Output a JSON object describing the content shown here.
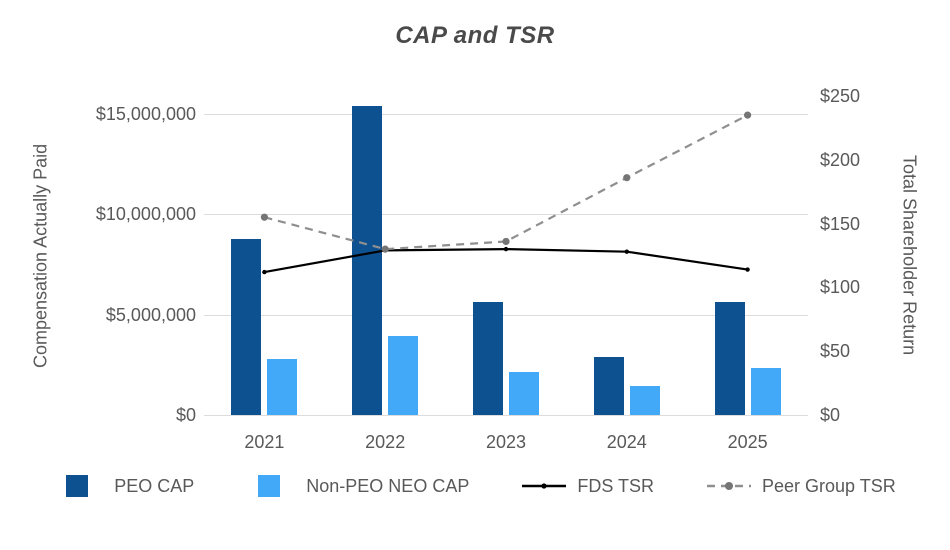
{
  "title": "CAP and TSR",
  "left_axis": {
    "title": "Compensation Actually Paid",
    "ticks": [
      {
        "label": "$15,000,000",
        "value": 15000000
      },
      {
        "label": "$10,000,000",
        "value": 10000000
      },
      {
        "label": "$5,000,000",
        "value": 5000000
      },
      {
        "label": "$0",
        "value": 0
      }
    ],
    "range": [
      0,
      15900000
    ],
    "gridline_values": [
      0,
      5000000,
      10000000,
      15000000
    ]
  },
  "right_axis": {
    "title": "Total Shareholder Return",
    "ticks": [
      {
        "label": "$250",
        "value": 250
      },
      {
        "label": "$200",
        "value": 200
      },
      {
        "label": "$150",
        "value": 150
      },
      {
        "label": "$100",
        "value": 100
      },
      {
        "label": "$50",
        "value": 50
      },
      {
        "label": "$0",
        "value": 0
      }
    ],
    "range": [
      0,
      250
    ]
  },
  "chart_data": {
    "type": "combo-bar-line",
    "title": "CAP and TSR",
    "categories": [
      "2021",
      "2022",
      "2023",
      "2024",
      "2025"
    ],
    "series": [
      {
        "name": "PEO CAP",
        "type": "bar",
        "axis": "left",
        "color": "#0e5190",
        "values": [
          8750000,
          15400000,
          5650000,
          2900000,
          5650000
        ]
      },
      {
        "name": "Non-PEO NEO CAP",
        "type": "bar",
        "axis": "left",
        "color": "#41a9f7",
        "values": [
          2800000,
          3950000,
          2150000,
          1450000,
          2350000
        ]
      },
      {
        "name": "FDS TSR",
        "type": "line",
        "axis": "right",
        "color": "#000000",
        "dash": "solid",
        "marker_color": "#000000",
        "values": [
          112,
          129,
          130,
          128,
          114
        ]
      },
      {
        "name": "Peer Group TSR",
        "type": "line",
        "axis": "right",
        "color": "#8f8f8f",
        "dash": "dashed",
        "marker_color": "#757575",
        "values": [
          155,
          130,
          136,
          186,
          235
        ]
      }
    ],
    "xlabel": "",
    "ylabel_left": "Compensation Actually Paid",
    "ylabel_right": "Total Shareholder Return",
    "ylim_left": [
      0,
      15900000
    ],
    "ylim_right": [
      0,
      250
    ],
    "grid": "horizontal",
    "legend_position": "bottom"
  },
  "colors": {
    "grid": "#dcdcdc",
    "axis_text": "#595959",
    "title_text": "#4a4a4a"
  }
}
